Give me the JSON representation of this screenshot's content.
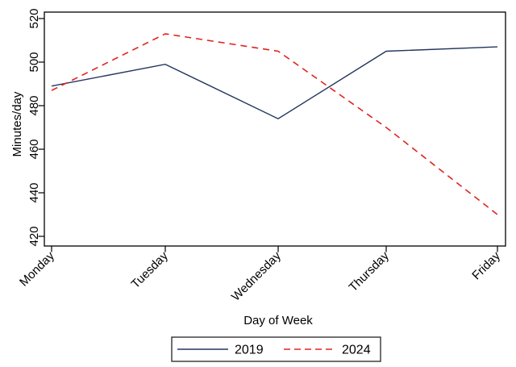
{
  "figure": {
    "background": "#ffffff",
    "axis_color": "#000000"
  },
  "chart_data": {
    "type": "line",
    "title": "",
    "xlabel": "Day of Week",
    "ylabel": "Minutes/day",
    "categories": [
      "Monday",
      "Tuesday",
      "Wednesday",
      "Thursday",
      "Friday"
    ],
    "series": [
      {
        "name": "2019",
        "values": [
          489,
          499,
          474,
          505,
          507
        ],
        "color": "#24365f",
        "line_style": "solid"
      },
      {
        "name": "2024",
        "values": [
          487,
          513,
          505,
          470,
          430
        ],
        "color": "#e2231e",
        "line_style": "dashed"
      }
    ],
    "ylim": [
      420,
      520
    ],
    "yticks": [
      420,
      440,
      460,
      480,
      500,
      520
    ],
    "grid": false,
    "legend_position": "bottom-center",
    "legend_labels": [
      "2019",
      "2024"
    ]
  }
}
